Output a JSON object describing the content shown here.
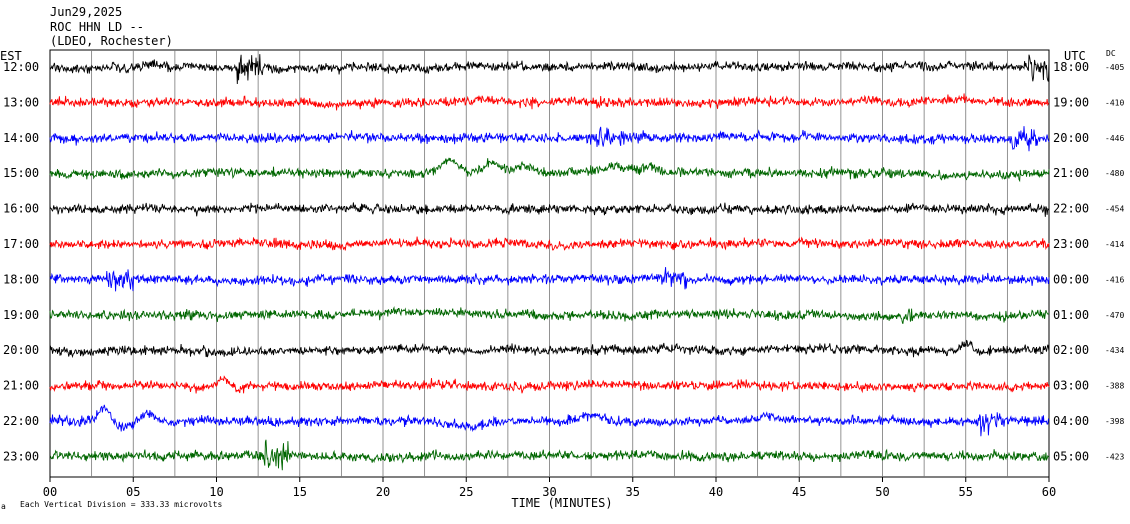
{
  "header": {
    "date": "Jun29,2025",
    "station": "ROC HHN LD --",
    "network": "(LDEO, Rochester)"
  },
  "left_axis_title": "EST",
  "right_axis_title": "UTC",
  "dc_title": "DC",
  "footer": {
    "mark": "a",
    "scale_note": "Each Vertical Division =  333.33 microvolts"
  },
  "chart_data": {
    "type": "line",
    "title": "ROC HHN LD --",
    "xlabel": "TIME (MINUTES)",
    "xlim": [
      0,
      60
    ],
    "x_ticks": [
      "00",
      "05",
      "10",
      "15",
      "20",
      "25",
      "30",
      "35",
      "40",
      "45",
      "50",
      "55",
      "60"
    ],
    "grid": "vertical lines every 2.5 minutes",
    "trace_colors": [
      "#000000",
      "#ff0000",
      "#0000ff",
      "#006600"
    ],
    "rows": [
      {
        "est": "12:00",
        "utc": "18:00",
        "dc": "-405",
        "color": "#000000"
      },
      {
        "est": "13:00",
        "utc": "19:00",
        "dc": "-410",
        "color": "#ff0000"
      },
      {
        "est": "14:00",
        "utc": "20:00",
        "dc": "-446",
        "color": "#0000ff"
      },
      {
        "est": "15:00",
        "utc": "21:00",
        "dc": "-480",
        "color": "#006600"
      },
      {
        "est": "16:00",
        "utc": "22:00",
        "dc": "-454",
        "color": "#000000"
      },
      {
        "est": "17:00",
        "utc": "23:00",
        "dc": "-414",
        "color": "#ff0000"
      },
      {
        "est": "18:00",
        "utc": "00:00",
        "dc": "-416",
        "color": "#0000ff"
      },
      {
        "est": "19:00",
        "utc": "01:00",
        "dc": "-470",
        "color": "#006600"
      },
      {
        "est": "20:00",
        "utc": "02:00",
        "dc": "-434",
        "color": "#000000"
      },
      {
        "est": "21:00",
        "utc": "03:00",
        "dc": "-388",
        "color": "#ff0000"
      },
      {
        "est": "22:00",
        "utc": "04:00",
        "dc": "-398",
        "color": "#0000ff"
      },
      {
        "est": "23:00",
        "utc": "05:00",
        "dc": "-423",
        "color": "#006600"
      }
    ]
  }
}
